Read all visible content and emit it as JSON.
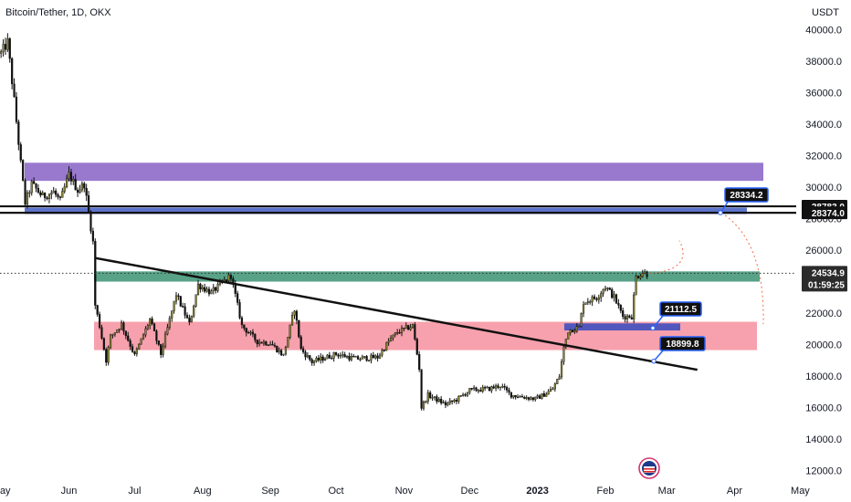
{
  "header": {
    "title": "Bitcoin/Tether, 1D, OKX",
    "currency": "USDT"
  },
  "chart_data": {
    "type": "candlestick",
    "symbol": "Bitcoin/Tether",
    "interval": "1D",
    "exchange": "OKX",
    "y_ticks": [
      "40000.0",
      "38000.0",
      "36000.0",
      "34000.0",
      "32000.0",
      "30000.0",
      "28000.0",
      "26000.0",
      "22000.0",
      "20000.0",
      "18000.0",
      "16000.0",
      "14000.0",
      "12000.0"
    ],
    "x_ticks": [
      "May",
      "Jun",
      "Jul",
      "Aug",
      "Sep",
      "Oct",
      "Nov",
      "Dec",
      "2023",
      "Feb",
      "Mar",
      "Apr",
      "May"
    ],
    "ylim": [
      11600,
      41600
    ],
    "price_labels": {
      "level_upper": "28783.0",
      "level_lower": "28374.0",
      "current_price": "24534.9",
      "countdown": "01:59:25"
    },
    "callouts": [
      "28334.2",
      "21112.5",
      "18899.8"
    ],
    "zones": [
      {
        "name": "supply-zone",
        "color": "#7e57c2",
        "y_low": 30400,
        "y_high": 31550
      },
      {
        "name": "resistance-zone",
        "color": "#3f5bbf",
        "y_low": 28300,
        "y_high": 28700
      },
      {
        "name": "pivot-zone",
        "color": "#2e8b6a",
        "y_low": 24000,
        "y_high": 24650
      },
      {
        "name": "demand-zone",
        "color": "#f48a98",
        "y_low": 19650,
        "y_high": 21450
      },
      {
        "name": "retest-zone",
        "color": "#3f4fbf",
        "y_low": 20900,
        "y_high": 21350
      }
    ],
    "trendline": {
      "from": {
        "date": "2022-06-13",
        "value": 25500
      },
      "to": {
        "date": "2023-03-15",
        "value": 18400
      }
    },
    "close_path": [
      [
        "2022-05-01",
        38500
      ],
      [
        "2022-05-04",
        39200
      ],
      [
        "2022-05-07",
        35500
      ],
      [
        "2022-05-10",
        31500
      ],
      [
        "2022-05-12",
        29000
      ],
      [
        "2022-05-15",
        30200
      ],
      [
        "2022-05-20",
        29400
      ],
      [
        "2022-05-25",
        29700
      ],
      [
        "2022-05-28",
        29100
      ],
      [
        "2022-06-01",
        30800
      ],
      [
        "2022-06-05",
        29800
      ],
      [
        "2022-06-08",
        30200
      ],
      [
        "2022-06-10",
        28400
      ],
      [
        "2022-06-12",
        26500
      ],
      [
        "2022-06-13",
        22500
      ],
      [
        "2022-06-15",
        21200
      ],
      [
        "2022-06-18",
        19000
      ],
      [
        "2022-06-20",
        20500
      ],
      [
        "2022-06-25",
        21300
      ],
      [
        "2022-07-01",
        19300
      ],
      [
        "2022-07-08",
        21600
      ],
      [
        "2022-07-13",
        19400
      ],
      [
        "2022-07-20",
        23200
      ],
      [
        "2022-07-26",
        21300
      ],
      [
        "2022-07-30",
        23800
      ],
      [
        "2022-08-05",
        23300
      ],
      [
        "2022-08-14",
        24400
      ],
      [
        "2022-08-19",
        21200
      ],
      [
        "2022-08-26",
        20200
      ],
      [
        "2022-09-01",
        20100
      ],
      [
        "2022-09-07",
        19300
      ],
      [
        "2022-09-12",
        22300
      ],
      [
        "2022-09-15",
        19700
      ],
      [
        "2022-09-20",
        18900
      ],
      [
        "2022-10-01",
        19400
      ],
      [
        "2022-10-10",
        19100
      ],
      [
        "2022-10-20",
        19200
      ],
      [
        "2022-10-25",
        20200
      ],
      [
        "2022-10-29",
        20800
      ],
      [
        "2022-11-05",
        21200
      ],
      [
        "2022-11-08",
        18500
      ],
      [
        "2022-11-09",
        16000
      ],
      [
        "2022-11-12",
        16800
      ],
      [
        "2022-11-20",
        16200
      ],
      [
        "2022-11-25",
        16500
      ],
      [
        "2022-12-01",
        17100
      ],
      [
        "2022-12-10",
        17200
      ],
      [
        "2022-12-15",
        17400
      ],
      [
        "2022-12-20",
        16800
      ],
      [
        "2022-12-31",
        16550
      ],
      [
        "2023-01-05",
        16900
      ],
      [
        "2023-01-08",
        17200
      ],
      [
        "2023-01-11",
        18000
      ],
      [
        "2023-01-13",
        19800
      ],
      [
        "2023-01-15",
        20900
      ],
      [
        "2023-01-20",
        21100
      ],
      [
        "2023-01-22",
        22700
      ],
      [
        "2023-01-28",
        23000
      ],
      [
        "2023-02-01",
        23700
      ],
      [
        "2023-02-05",
        23000
      ],
      [
        "2023-02-09",
        21800
      ],
      [
        "2023-02-13",
        21800
      ],
      [
        "2023-02-15",
        24300
      ],
      [
        "2023-02-18",
        24600
      ],
      [
        "2023-02-20",
        24500
      ]
    ]
  }
}
